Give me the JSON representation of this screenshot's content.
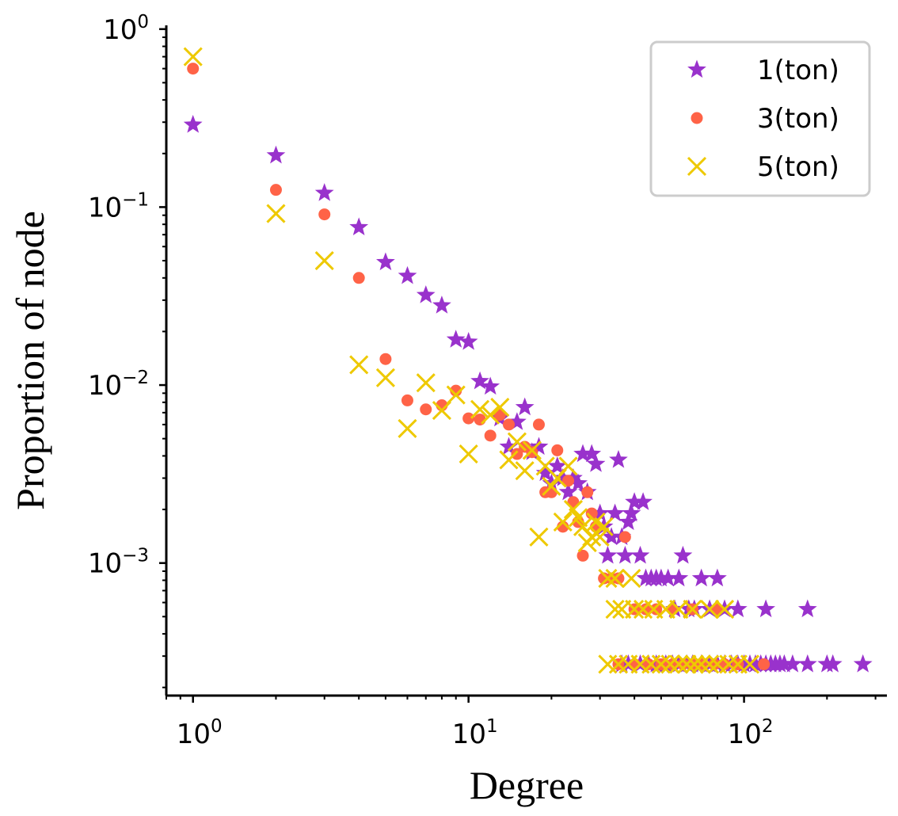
{
  "chart_data": {
    "type": "scatter",
    "xscale": "log",
    "yscale": "log",
    "xlabel": "Degree",
    "ylabel": "Proportion of node",
    "xlim": [
      0.8,
      330
    ],
    "ylim": [
      0.00018,
      1.05
    ],
    "x_ticks": [
      {
        "value": 1,
        "base": "10",
        "exp": "0"
      },
      {
        "value": 10,
        "base": "10",
        "exp": "1"
      },
      {
        "value": 100,
        "base": "10",
        "exp": "2"
      }
    ],
    "y_ticks": [
      {
        "value": 1,
        "base": "10",
        "exp": "0"
      },
      {
        "value": 0.1,
        "base": "10",
        "exp": "−1"
      },
      {
        "value": 0.01,
        "base": "10",
        "exp": "−2"
      },
      {
        "value": 0.001,
        "base": "10",
        "exp": "−3"
      }
    ],
    "legend_position": "top-right",
    "series": [
      {
        "name": "1(ton)",
        "marker": "star",
        "color": "#9932CC",
        "points": [
          [
            1,
            0.29
          ],
          [
            2,
            0.195
          ],
          [
            3,
            0.12
          ],
          [
            4,
            0.077
          ],
          [
            5,
            0.049
          ],
          [
            6,
            0.041
          ],
          [
            7,
            0.032
          ],
          [
            8,
            0.028
          ],
          [
            9,
            0.018
          ],
          [
            10,
            0.0175
          ],
          [
            11,
            0.0105
          ],
          [
            12,
            0.0098
          ],
          [
            13,
            0.0065
          ],
          [
            14,
            0.0045
          ],
          [
            15,
            0.0062
          ],
          [
            16,
            0.0075
          ],
          [
            17,
            0.0042
          ],
          [
            18,
            0.0045
          ],
          [
            19,
            0.0032
          ],
          [
            20,
            0.0028
          ],
          [
            21,
            0.0035
          ],
          [
            22,
            0.003
          ],
          [
            23,
            0.0025
          ],
          [
            24,
            0.003
          ],
          [
            25,
            0.0028
          ],
          [
            26,
            0.0041
          ],
          [
            27,
            0.0025
          ],
          [
            28,
            0.0041
          ],
          [
            29,
            0.0036
          ],
          [
            30,
            0.0019
          ],
          [
            31,
            0.0016
          ],
          [
            32,
            0.0011
          ],
          [
            33,
            0.0014
          ],
          [
            34,
            0.0019
          ],
          [
            35,
            0.0038
          ],
          [
            36,
            0.0014
          ],
          [
            37,
            0.0011
          ],
          [
            38,
            0.0017
          ],
          [
            39,
            0.0019
          ],
          [
            40,
            0.0022
          ],
          [
            42,
            0.0011
          ],
          [
            43,
            0.0022
          ],
          [
            44,
            0.00082
          ],
          [
            46,
            0.00082
          ],
          [
            48,
            0.00082
          ],
          [
            50,
            0.00082
          ],
          [
            53,
            0.00082
          ],
          [
            56,
            0.00055
          ],
          [
            58,
            0.00082
          ],
          [
            60,
            0.0011
          ],
          [
            63,
            0.00055
          ],
          [
            66,
            0.00055
          ],
          [
            70,
            0.00082
          ],
          [
            75,
            0.00055
          ],
          [
            80,
            0.00082
          ],
          [
            85,
            0.00055
          ],
          [
            95,
            0.00055
          ],
          [
            120,
            0.00055
          ],
          [
            170,
            0.00055
          ],
          [
            36,
            0.00027
          ],
          [
            38,
            0.00027
          ],
          [
            42,
            0.00027
          ],
          [
            45,
            0.00027
          ],
          [
            48,
            0.00027
          ],
          [
            52,
            0.00027
          ],
          [
            55,
            0.00027
          ],
          [
            58,
            0.00027
          ],
          [
            62,
            0.00027
          ],
          [
            65,
            0.00027
          ],
          [
            70,
            0.00027
          ],
          [
            75,
            0.00027
          ],
          [
            80,
            0.00027
          ],
          [
            85,
            0.00027
          ],
          [
            90,
            0.00027
          ],
          [
            95,
            0.00027
          ],
          [
            100,
            0.00027
          ],
          [
            105,
            0.00027
          ],
          [
            110,
            0.00027
          ],
          [
            115,
            0.00027
          ],
          [
            120,
            0.00027
          ],
          [
            125,
            0.00027
          ],
          [
            130,
            0.00027
          ],
          [
            135,
            0.00027
          ],
          [
            140,
            0.00027
          ],
          [
            150,
            0.00027
          ],
          [
            170,
            0.00027
          ],
          [
            200,
            0.00027
          ],
          [
            210,
            0.00027
          ],
          [
            270,
            0.00027
          ]
        ]
      },
      {
        "name": "3(ton)",
        "marker": "circle",
        "color": "#FF6347",
        "points": [
          [
            1,
            0.6
          ],
          [
            2,
            0.125
          ],
          [
            3,
            0.091
          ],
          [
            4,
            0.04
          ],
          [
            5,
            0.014
          ],
          [
            6,
            0.0082
          ],
          [
            7,
            0.0073
          ],
          [
            8,
            0.0077
          ],
          [
            9,
            0.0093
          ],
          [
            10,
            0.0065
          ],
          [
            11,
            0.0064
          ],
          [
            12,
            0.0052
          ],
          [
            13,
            0.0068
          ],
          [
            14,
            0.006
          ],
          [
            15,
            0.0041
          ],
          [
            16,
            0.0045
          ],
          [
            17,
            0.0042
          ],
          [
            18,
            0.006
          ],
          [
            19,
            0.0025
          ],
          [
            20,
            0.0025
          ],
          [
            21,
            0.0043
          ],
          [
            22,
            0.0016
          ],
          [
            23,
            0.0029
          ],
          [
            24,
            0.0022
          ],
          [
            25,
            0.0017
          ],
          [
            26,
            0.0011
          ],
          [
            27,
            0.0025
          ],
          [
            28,
            0.0019
          ],
          [
            29,
            0.0016
          ],
          [
            31,
            0.00082
          ],
          [
            33,
            0.00082
          ],
          [
            35,
            0.00082
          ],
          [
            37,
            0.0014
          ],
          [
            40,
            0.00055
          ],
          [
            44,
            0.00055
          ],
          [
            48,
            0.00055
          ],
          [
            55,
            0.00055
          ],
          [
            65,
            0.00055
          ],
          [
            80,
            0.00055
          ],
          [
            35,
            0.00027
          ],
          [
            40,
            0.00027
          ],
          [
            45,
            0.00027
          ],
          [
            50,
            0.00027
          ],
          [
            55,
            0.00027
          ],
          [
            60,
            0.00027
          ],
          [
            65,
            0.00027
          ],
          [
            70,
            0.00027
          ],
          [
            78,
            0.00027
          ],
          [
            85,
            0.00027
          ],
          [
            95,
            0.00027
          ],
          [
            118,
            0.00027
          ]
        ]
      },
      {
        "name": "5(ton)",
        "marker": "x",
        "color": "#EEC900",
        "points": [
          [
            1,
            0.7
          ],
          [
            2,
            0.092
          ],
          [
            3,
            0.05
          ],
          [
            4,
            0.013
          ],
          [
            5,
            0.011
          ],
          [
            6,
            0.0057
          ],
          [
            7,
            0.0103
          ],
          [
            8,
            0.0072
          ],
          [
            9,
            0.0088
          ],
          [
            10,
            0.0041
          ],
          [
            11,
            0.0073
          ],
          [
            12,
            0.0068
          ],
          [
            13,
            0.0075
          ],
          [
            14,
            0.0038
          ],
          [
            15,
            0.0048
          ],
          [
            16,
            0.0033
          ],
          [
            17,
            0.0043
          ],
          [
            18,
            0.0014
          ],
          [
            19,
            0.0035
          ],
          [
            20,
            0.0027
          ],
          [
            21,
            0.003
          ],
          [
            22,
            0.0017
          ],
          [
            23,
            0.0035
          ],
          [
            24,
            0.002
          ],
          [
            25,
            0.0018
          ],
          [
            26,
            0.0016
          ],
          [
            27,
            0.0013
          ],
          [
            28,
            0.0014
          ],
          [
            29,
            0.0017
          ],
          [
            30,
            0.0014
          ],
          [
            31,
            0.0016
          ],
          [
            32,
            0.00082
          ],
          [
            34,
            0.00082
          ],
          [
            39,
            0.00082
          ],
          [
            34,
            0.00055
          ],
          [
            36,
            0.00055
          ],
          [
            40,
            0.00055
          ],
          [
            43,
            0.00055
          ],
          [
            47,
            0.00055
          ],
          [
            52,
            0.00055
          ],
          [
            58,
            0.00055
          ],
          [
            65,
            0.00055
          ],
          [
            75,
            0.00055
          ],
          [
            85,
            0.00055
          ],
          [
            32,
            0.00027
          ],
          [
            35,
            0.00027
          ],
          [
            38,
            0.00027
          ],
          [
            42,
            0.00027
          ],
          [
            46,
            0.00027
          ],
          [
            50,
            0.00027
          ],
          [
            54,
            0.00027
          ],
          [
            58,
            0.00027
          ],
          [
            62,
            0.00027
          ],
          [
            66,
            0.00027
          ],
          [
            70,
            0.00027
          ],
          [
            75,
            0.00027
          ],
          [
            80,
            0.00027
          ],
          [
            88,
            0.00027
          ],
          [
            95,
            0.00027
          ],
          [
            105,
            0.00027
          ]
        ]
      }
    ]
  }
}
